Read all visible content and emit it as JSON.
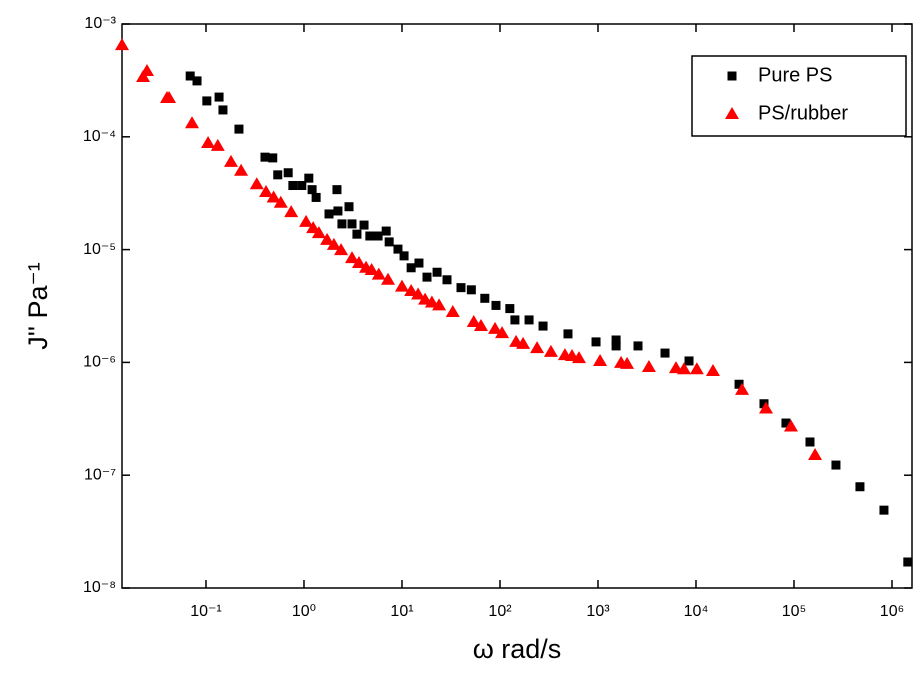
{
  "chart_data": {
    "type": "scatter",
    "x_label": "ω rad/s",
    "y_label": "J'' Pa⁻¹",
    "log_x": true,
    "log_y": true,
    "xlim": [
      0.0139,
      1600000
    ],
    "ylim": [
      1e-08,
      0.001
    ],
    "xticks": [
      {
        "value": 0.1,
        "label": "10⁻¹"
      },
      {
        "value": 1,
        "label": "10⁰"
      },
      {
        "value": 10,
        "label": "10¹"
      },
      {
        "value": 100,
        "label": "10²"
      },
      {
        "value": 1000,
        "label": "10³"
      },
      {
        "value": 10000,
        "label": "10⁴"
      },
      {
        "value": 100000,
        "label": "10⁵"
      },
      {
        "value": 1000000,
        "label": "10⁶"
      }
    ],
    "yticks": [
      {
        "value": 1e-08,
        "label": "10⁻⁸"
      },
      {
        "value": 1e-07,
        "label": "10⁻⁷"
      },
      {
        "value": 1e-06,
        "label": "10⁻⁶"
      },
      {
        "value": 1e-05,
        "label": "10⁻⁵"
      },
      {
        "value": 0.0001,
        "label": "10⁻⁴"
      },
      {
        "value": 0.001,
        "label": "10⁻³"
      }
    ],
    "legend": "upper right",
    "series": [
      {
        "name": "Pure PS",
        "color": "#000000",
        "marker": "square",
        "x": [
          0.069,
          0.081,
          0.102,
          0.136,
          0.149,
          0.217,
          0.4,
          0.48,
          0.54,
          0.69,
          0.77,
          0.95,
          1.12,
          1.21,
          1.33,
          1.8,
          2.17,
          2.22,
          2.44,
          2.88,
          3.09,
          3.47,
          4.1,
          4.7,
          5.7,
          6.9,
          7.4,
          9.1,
          10.5,
          12.4,
          14.9,
          18,
          22.8,
          28.8,
          40,
          51,
          70,
          91,
          126,
          142,
          198,
          275,
          494,
          955,
          1530,
          1530,
          2560,
          4830,
          8490,
          27500,
          49400,
          82800,
          145600,
          268000,
          471000,
          828000,
          1450000
        ],
        "values": [
          0.000346,
          0.000313,
          0.000208,
          0.000225,
          0.000173,
          0.000117,
          6.6e-05,
          6.5e-05,
          4.6e-05,
          4.8e-05,
          3.7e-05,
          3.7e-05,
          4.3e-05,
          3.4e-05,
          2.9e-05,
          2.07e-05,
          3.4e-05,
          2.2e-05,
          1.69e-05,
          2.4e-05,
          1.69e-05,
          1.37e-05,
          1.65e-05,
          1.32e-05,
          1.32e-05,
          1.46e-05,
          1.17e-05,
          1.01e-05,
          8.8e-06,
          6.9e-06,
          7.6e-06,
          5.7e-06,
          6.3e-06,
          5.4e-06,
          4.6e-06,
          4.4e-06,
          3.7e-06,
          3.2e-06,
          3e-06,
          2.38e-06,
          2.38e-06,
          2.1e-06,
          1.79e-06,
          1.52e-06,
          1.58e-06,
          1.4e-06,
          1.4e-06,
          1.21e-06,
          1.03e-06,
          6.4e-07,
          4.3e-07,
          2.9e-07,
          1.97e-07,
          1.23e-07,
          7.9e-08,
          4.9e-08,
          1.7e-08
        ]
      },
      {
        "name": "PS/rubber",
        "color": "#ff0000",
        "marker": "triangle",
        "x": [
          0.0139,
          0.0228,
          0.025,
          0.04,
          0.042,
          0.072,
          0.105,
          0.132,
          0.18,
          0.228,
          0.33,
          0.41,
          0.49,
          0.58,
          0.74,
          1.05,
          1.24,
          1.42,
          1.72,
          2.02,
          2.39,
          3.09,
          3.64,
          4.3,
          4.9,
          5.8,
          7.2,
          10,
          12.4,
          14.6,
          17.2,
          20.2,
          23.9,
          33,
          54,
          64,
          89,
          105,
          146,
          172,
          239,
          331,
          460,
          543,
          640,
          1050,
          1720,
          1980,
          3310,
          6250,
          7550,
          10200,
          14900,
          29500,
          51800,
          93100,
          164000
        ],
        "values": [
          0.00065,
          0.000339,
          0.000383,
          0.000221,
          0.000221,
          0.000132,
          8.8e-05,
          8.3e-05,
          6e-05,
          5e-05,
          3.8e-05,
          3.24e-05,
          2.9e-05,
          2.6e-05,
          2.15e-05,
          1.76e-05,
          1.55e-05,
          1.4e-05,
          1.22e-05,
          1.1e-05,
          9.9e-06,
          8.4e-06,
          7.6e-06,
          6.9e-06,
          6.6e-06,
          6e-06,
          5.4e-06,
          4.7e-06,
          4.3e-06,
          4e-06,
          3.6e-06,
          3.4e-06,
          3.2e-06,
          2.8e-06,
          2.28e-06,
          2.1e-06,
          1.98e-06,
          1.82e-06,
          1.52e-06,
          1.46e-06,
          1.34e-06,
          1.24e-06,
          1.16e-06,
          1.14e-06,
          1.09e-06,
          1.03e-06,
          9.9e-07,
          9.7e-07,
          9.1e-07,
          8.9e-07,
          8.7e-07,
          8.7e-07,
          8.4e-07,
          5.7e-07,
          3.9e-07,
          2.7e-07,
          1.51e-07
        ]
      }
    ]
  }
}
